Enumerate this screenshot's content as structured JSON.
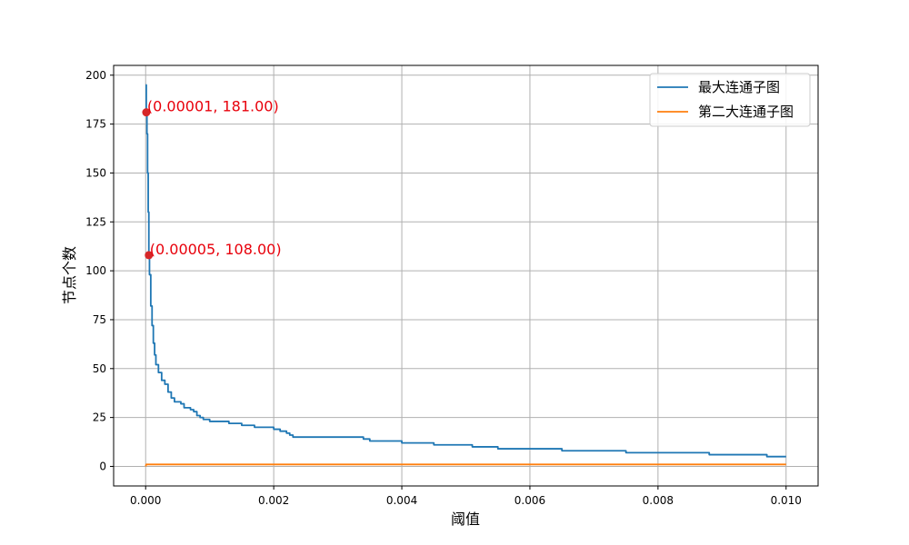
{
  "chart_data": {
    "type": "line",
    "title": "",
    "xlabel": "阈值",
    "ylabel": "节点个数",
    "xlim": [
      -0.0005,
      0.0105
    ],
    "ylim": [
      -10,
      205
    ],
    "x_ticks": [
      0.0,
      0.002,
      0.004,
      0.006,
      0.008,
      0.01
    ],
    "x_tick_labels": [
      "0.000",
      "0.002",
      "0.004",
      "0.006",
      "0.008",
      "0.010"
    ],
    "y_ticks": [
      0,
      25,
      50,
      75,
      100,
      125,
      150,
      175,
      200
    ],
    "y_tick_labels": [
      "0",
      "25",
      "50",
      "75",
      "100",
      "125",
      "150",
      "175",
      "200"
    ],
    "grid": true,
    "legend_position": "top-right",
    "series": [
      {
        "name": "最大连通子图",
        "color": "#1f77b4",
        "step": true,
        "x": [
          0.0,
          1e-05,
          2e-05,
          3e-05,
          4e-05,
          5e-05,
          6e-05,
          8e-05,
          0.0001,
          0.00012,
          0.00014,
          0.00016,
          0.0002,
          0.00025,
          0.0003,
          0.00035,
          0.0004,
          0.00045,
          0.0005,
          0.00055,
          0.0006,
          0.00065,
          0.0007,
          0.00075,
          0.0008,
          0.00085,
          0.0009,
          0.001,
          0.0011,
          0.0012,
          0.0013,
          0.0014,
          0.0015,
          0.0016,
          0.0017,
          0.0018,
          0.0019,
          0.002,
          0.0021,
          0.0022,
          0.00225,
          0.0023,
          0.0025,
          0.003,
          0.0034,
          0.0035,
          0.004,
          0.0045,
          0.0049,
          0.0051,
          0.0055,
          0.0058,
          0.0059,
          0.0065,
          0.0071,
          0.0075,
          0.008,
          0.0084,
          0.0088,
          0.009,
          0.0094,
          0.0097,
          0.01
        ],
        "values": [
          195,
          181,
          170,
          150,
          130,
          108,
          98,
          82,
          72,
          63,
          57,
          52,
          48,
          44,
          42,
          38,
          35,
          33,
          33,
          32,
          30,
          30,
          29,
          28,
          26,
          25,
          24,
          23,
          23,
          23,
          22,
          22,
          21,
          21,
          20,
          20,
          20,
          19,
          18,
          17,
          16,
          15,
          15,
          15,
          14,
          13,
          12,
          11,
          11,
          10,
          9,
          9,
          9,
          8,
          8,
          7,
          7,
          7,
          6,
          6,
          6,
          5,
          5
        ]
      },
      {
        "name": "第二大连通子图",
        "color": "#ff7f0e",
        "step": false,
        "x": [
          0.0,
          1e-05,
          3e-05,
          0.0001,
          0.01
        ],
        "values": [
          0,
          1,
          1,
          1,
          1
        ]
      }
    ],
    "annotations": [
      {
        "text": "(0.00001, 181.00)",
        "x": 1e-05,
        "y": 181,
        "color": "#e8000b",
        "marker_color": "#d62728"
      },
      {
        "text": "(0.00005, 108.00)",
        "x": 5e-05,
        "y": 108,
        "color": "#e8000b",
        "marker_color": "#d62728"
      }
    ]
  }
}
